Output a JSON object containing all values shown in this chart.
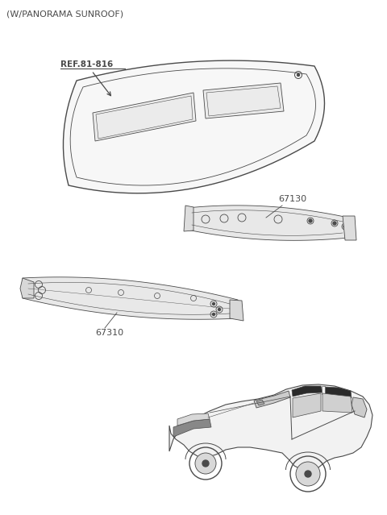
{
  "title": "(W/PANORAMA SUNROOF)",
  "bg_color": "#ffffff",
  "line_color": "#4a4a4a",
  "ref_label": "REF.81-816",
  "label_67130": "67130",
  "label_67310": "67310"
}
